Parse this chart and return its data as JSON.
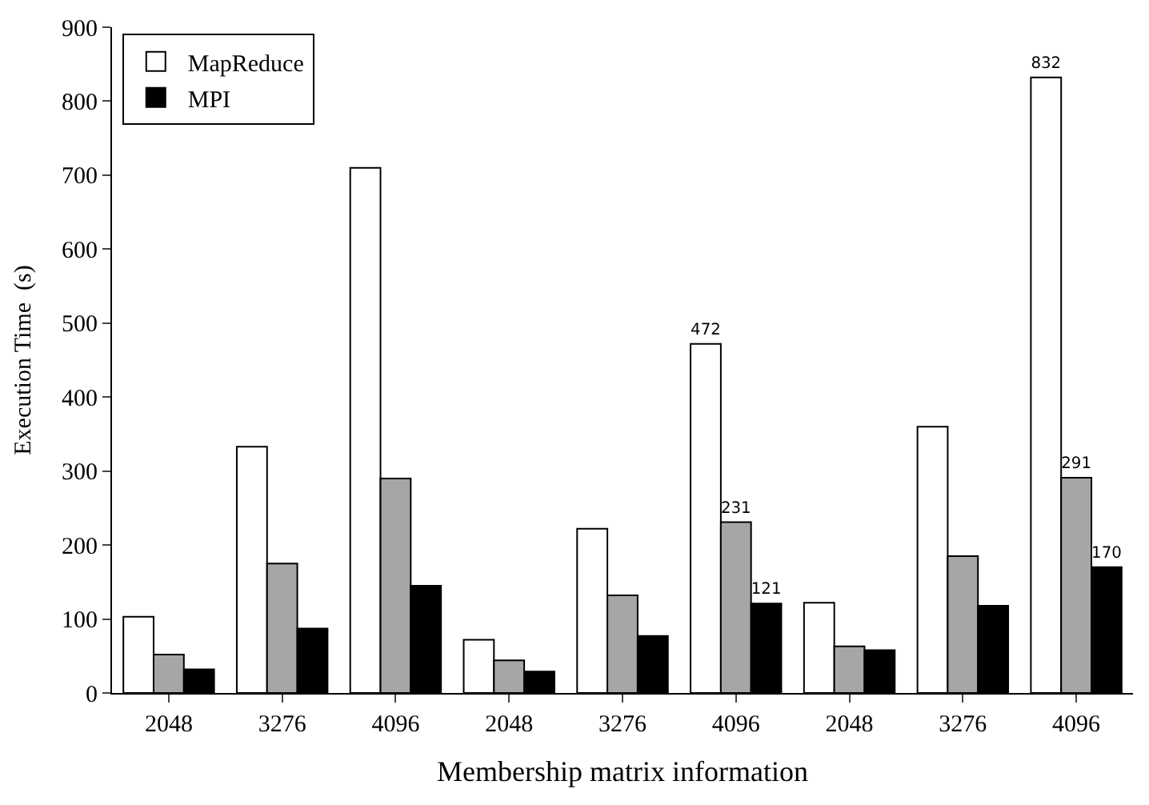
{
  "chart_data": {
    "type": "bar",
    "xlabel": "Membership matrix information",
    "ylabel": "Execution Time  (s)",
    "categories": [
      "2048",
      "3276",
      "4096",
      "2048",
      "3276",
      "4096",
      "2048",
      "3276",
      "4096"
    ],
    "series": [
      {
        "name": "MapReduce",
        "color": "#ffffff",
        "values": [
          103,
          333,
          710,
          72,
          222,
          472,
          122,
          360,
          832
        ],
        "value_labels": [
          null,
          null,
          null,
          null,
          null,
          "472",
          null,
          null,
          "832"
        ]
      },
      {
        "color": "#a6a6a6",
        "values": [
          52,
          175,
          290,
          44,
          132,
          231,
          63,
          185,
          291
        ],
        "value_labels": [
          null,
          null,
          null,
          null,
          null,
          "231",
          null,
          null,
          "291"
        ]
      },
      {
        "name": "MPI",
        "color": "#000000",
        "values": [
          32,
          87,
          145,
          29,
          77,
          121,
          58,
          118,
          170
        ],
        "value_labels": [
          null,
          null,
          null,
          null,
          null,
          "121",
          null,
          null,
          "170"
        ]
      }
    ],
    "ylim": [
      0,
      900
    ],
    "yticks": [
      0,
      100,
      200,
      300,
      400,
      500,
      600,
      700,
      800,
      900
    ],
    "grid": false,
    "legend": "top left"
  }
}
